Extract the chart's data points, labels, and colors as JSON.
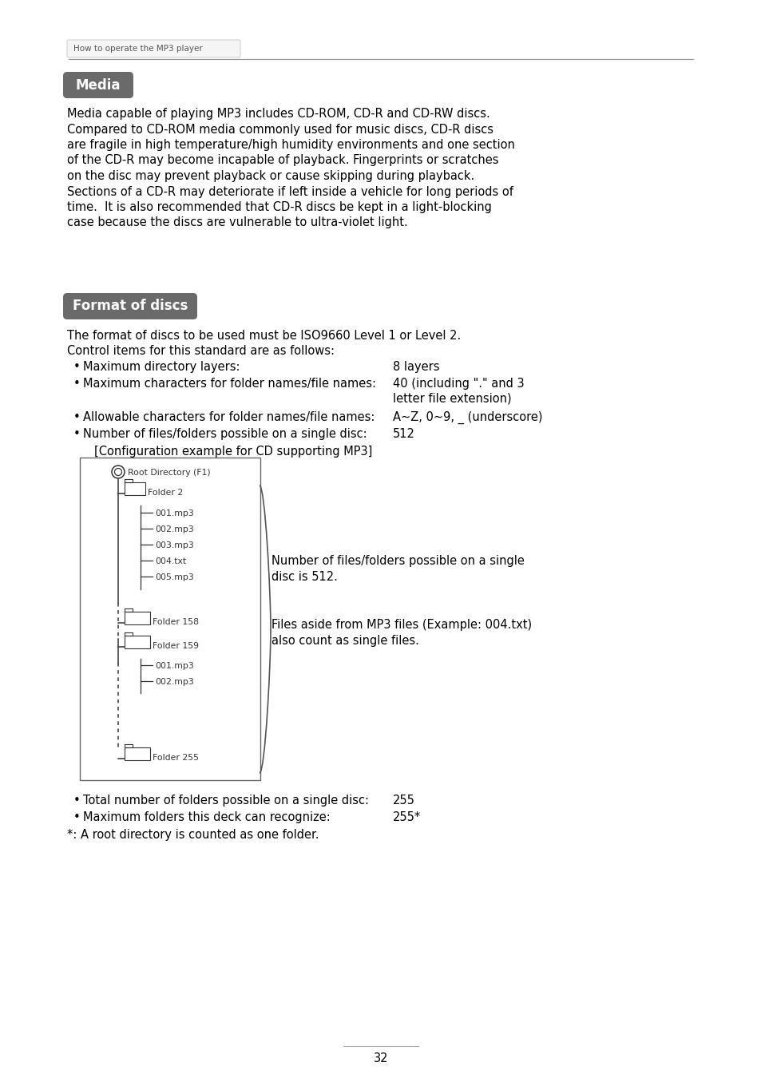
{
  "page_header": "How to operate the MP3 player",
  "page_number": "32",
  "section1_title": "Media",
  "section1_lines": [
    "Media capable of playing MP3 includes CD-ROM, CD-R and CD-RW discs.",
    "Compared to CD-ROM media commonly used for music discs, CD-R discs",
    "are fragile in high temperature/high humidity environments and one section",
    "of the CD-R may become incapable of playback. Fingerprints or scratches",
    "on the disc may prevent playback or cause skipping during playback.",
    "Sections of a CD-R may deteriorate if left inside a vehicle for long periods of",
    "time.  It is also recommended that CD-R discs be kept in a light-blocking",
    "case because the discs are vulnerable to ultra-violet light."
  ],
  "section2_title": "Format of discs",
  "section2_intro": "The format of discs to be used must be ISO9660 Level 1 or Level 2.",
  "section2_control": "Control items for this standard are as follows:",
  "b1_label": "Maximum directory layers:",
  "b1_val": "8 layers",
  "b2_label": "Maximum characters for folder names/file names:",
  "b2_val1": "40 (including \".\" and 3",
  "b2_val2": "letter file extension)",
  "b3_label": "Allowable characters for folder names/file names:",
  "b3_val": "A~Z, 0~9, _ (underscore)",
  "b4_label": "Number of files/folders possible on a single disc:",
  "b4_val": "512",
  "diag_title": "[Configuration example for CD supporting MP3]",
  "note1_l1": "Number of files/folders possible on a single",
  "note1_l2": "disc is 512.",
  "note2_l1": "Files aside from MP3 files (Example: 004.txt)",
  "note2_l2": "also count as single files.",
  "b5_label": "Total number of folders possible on a single disc:",
  "b5_val": "255",
  "b6_label": "Maximum folders this deck can recognize:",
  "b6_val": "255*",
  "footnote": "*: A root directory is counted as one folder.",
  "bg": "#ffffff",
  "fg": "#000000",
  "badge_bg": "#6a6a6a",
  "badge_fg": "#ffffff",
  "diag_fg": "#333333"
}
